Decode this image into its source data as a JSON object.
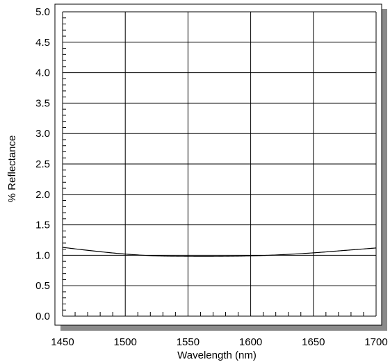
{
  "chart_data": {
    "type": "line",
    "title": "",
    "xlabel": "Wavelength (nm)",
    "ylabel": "% Reflectance",
    "xlim": [
      1450,
      1700
    ],
    "ylim": [
      0.0,
      5.0
    ],
    "x_ticks": [
      1450,
      1500,
      1550,
      1600,
      1650,
      1700
    ],
    "x_tick_labels": [
      "1450",
      "1500",
      "1550",
      "1600",
      "1650",
      "1700"
    ],
    "y_ticks": [
      0.0,
      0.5,
      1.0,
      1.5,
      2.0,
      2.5,
      3.0,
      3.5,
      4.0,
      4.5,
      5.0
    ],
    "y_tick_labels": [
      "0.0",
      "0.5",
      "1.0",
      "1.5",
      "2.0",
      "2.5",
      "3.0",
      "3.5",
      "4.0",
      "4.5",
      "5.0"
    ],
    "x_minor_step": 10,
    "y_minor_step": 0.1,
    "grid": true,
    "legend": "none",
    "series": [
      {
        "color": "#000000",
        "x": [
          1450,
          1475,
          1500,
          1525,
          1550,
          1575,
          1600,
          1625,
          1650,
          1675,
          1700
        ],
        "values": [
          1.13,
          1.07,
          1.02,
          0.99,
          0.98,
          0.98,
          0.99,
          1.01,
          1.04,
          1.08,
          1.12
        ]
      }
    ]
  }
}
